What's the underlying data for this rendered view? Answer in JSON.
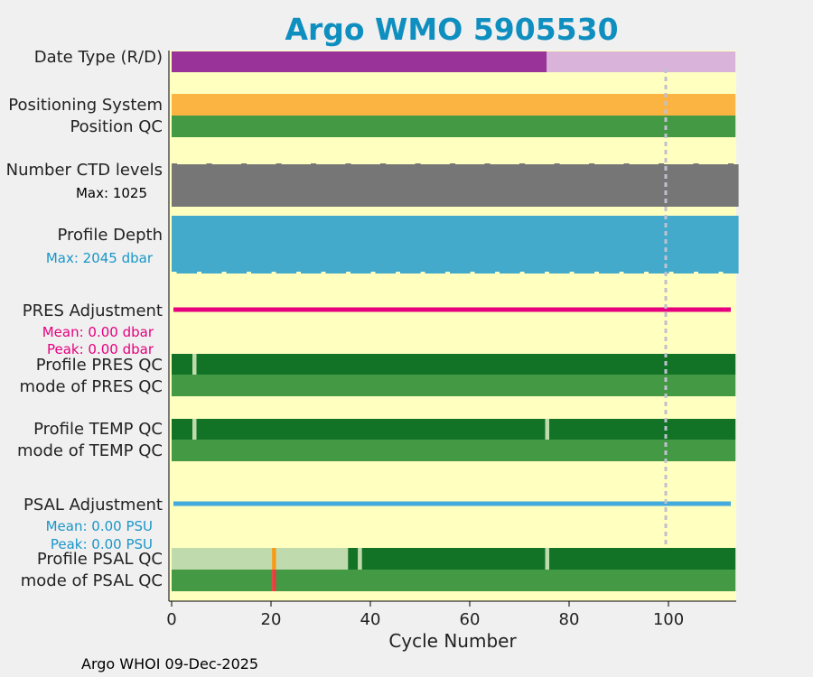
{
  "title": "Argo WMO 5905530",
  "footer": "Argo WHOI 09-Dec-2025",
  "colors": {
    "title": "#0f8fbf",
    "panel": "#ffffc0",
    "purple": "#993399",
    "light_purple": "#d9b3d9",
    "orange": "#fbb342",
    "qc_good": "#449944",
    "qc_dark": "#127327",
    "qc_light": "#bfdbad",
    "qc_orange": "#f59b1a",
    "qc_red": "#e64040",
    "gray": "#767676",
    "depth": "#44aacc",
    "pink": "#e6007e",
    "psal_line": "#44aadd",
    "ann_blue": "#1a96c8",
    "ann_pink": "#e6007e",
    "ref_line": "#c0c0d0"
  },
  "chart_data": {
    "type": "bar",
    "title": "Argo WMO 5905530",
    "xlabel": "Cycle Number",
    "xlim": [
      0,
      114
    ],
    "xticks": [
      "0",
      "20",
      "40",
      "60",
      "80",
      "100"
    ],
    "reference_line_cycle": 100,
    "rows": [
      {
        "label": "Date Type (R/D)",
        "segments": [
          [
            0,
            75.5,
            "purple"
          ],
          [
            75.5,
            113.5,
            "light_purple"
          ]
        ]
      },
      {
        "label": "Positioning System",
        "segments": [
          [
            0,
            113.5,
            "orange"
          ]
        ]
      },
      {
        "label": "Position QC",
        "segments": [
          [
            0,
            113.5,
            "qc_good"
          ]
        ]
      },
      {
        "label": "Number CTD levels",
        "max_text": "Max: 1025"
      },
      {
        "label": "Profile Depth",
        "max_text": "Max: 2045 dbar"
      },
      {
        "label": "PRES Adjustment",
        "mean_text": "Mean: 0.00 dbar",
        "peak_text": "Peak: 0.00 dbar"
      },
      {
        "label": "Profile PRES QC",
        "segments": [
          [
            0,
            4.2,
            "qc_dark"
          ],
          [
            4.2,
            5.0,
            "qc_light"
          ],
          [
            5.0,
            113.5,
            "qc_dark"
          ]
        ]
      },
      {
        "label": "mode of PRES QC",
        "segments": [
          [
            0,
            113.5,
            "qc_good"
          ]
        ]
      },
      {
        "label": "Profile TEMP QC",
        "segments": [
          [
            0,
            4.2,
            "qc_dark"
          ],
          [
            4.2,
            5.0,
            "qc_light"
          ],
          [
            5.0,
            75.2,
            "qc_dark"
          ],
          [
            75.2,
            76.0,
            "qc_light"
          ],
          [
            76.0,
            113.5,
            "qc_dark"
          ]
        ]
      },
      {
        "label": "mode of TEMP QC",
        "segments": [
          [
            0,
            113.5,
            "qc_good"
          ]
        ]
      },
      {
        "label": "PSAL Adjustment",
        "mean_text": "Mean: 0.00 PSU",
        "peak_text": "Peak: 0.00 PSU"
      },
      {
        "label": "Profile PSAL QC",
        "segments": [
          [
            0,
            20.2,
            "qc_light"
          ],
          [
            20.2,
            21.0,
            "qc_orange"
          ],
          [
            21.0,
            35.5,
            "qc_light"
          ],
          [
            35.5,
            37.5,
            "qc_dark"
          ],
          [
            37.5,
            38.3,
            "qc_light"
          ],
          [
            38.3,
            75.2,
            "qc_dark"
          ],
          [
            75.2,
            76.0,
            "qc_light"
          ],
          [
            76.0,
            113.5,
            "qc_dark"
          ]
        ]
      },
      {
        "label": "mode of PSAL QC",
        "segments": [
          [
            0,
            20.2,
            "qc_good"
          ],
          [
            20.2,
            21.0,
            "qc_red"
          ],
          [
            21.0,
            113.5,
            "qc_good"
          ]
        ]
      }
    ],
    "ctd_levels": {
      "max": 1025,
      "note": "bar of near-constant height across cycles 0-113"
    },
    "profile_depth": {
      "max": 2045,
      "unit": "dbar",
      "note": "bar of near-constant depth across cycles 0-113"
    },
    "pres_adjustment": {
      "mean": 0.0,
      "peak": 0.0,
      "unit": "dbar"
    },
    "psal_adjustment": {
      "mean": 0.0,
      "peak": 0.0,
      "unit": "PSU"
    }
  }
}
